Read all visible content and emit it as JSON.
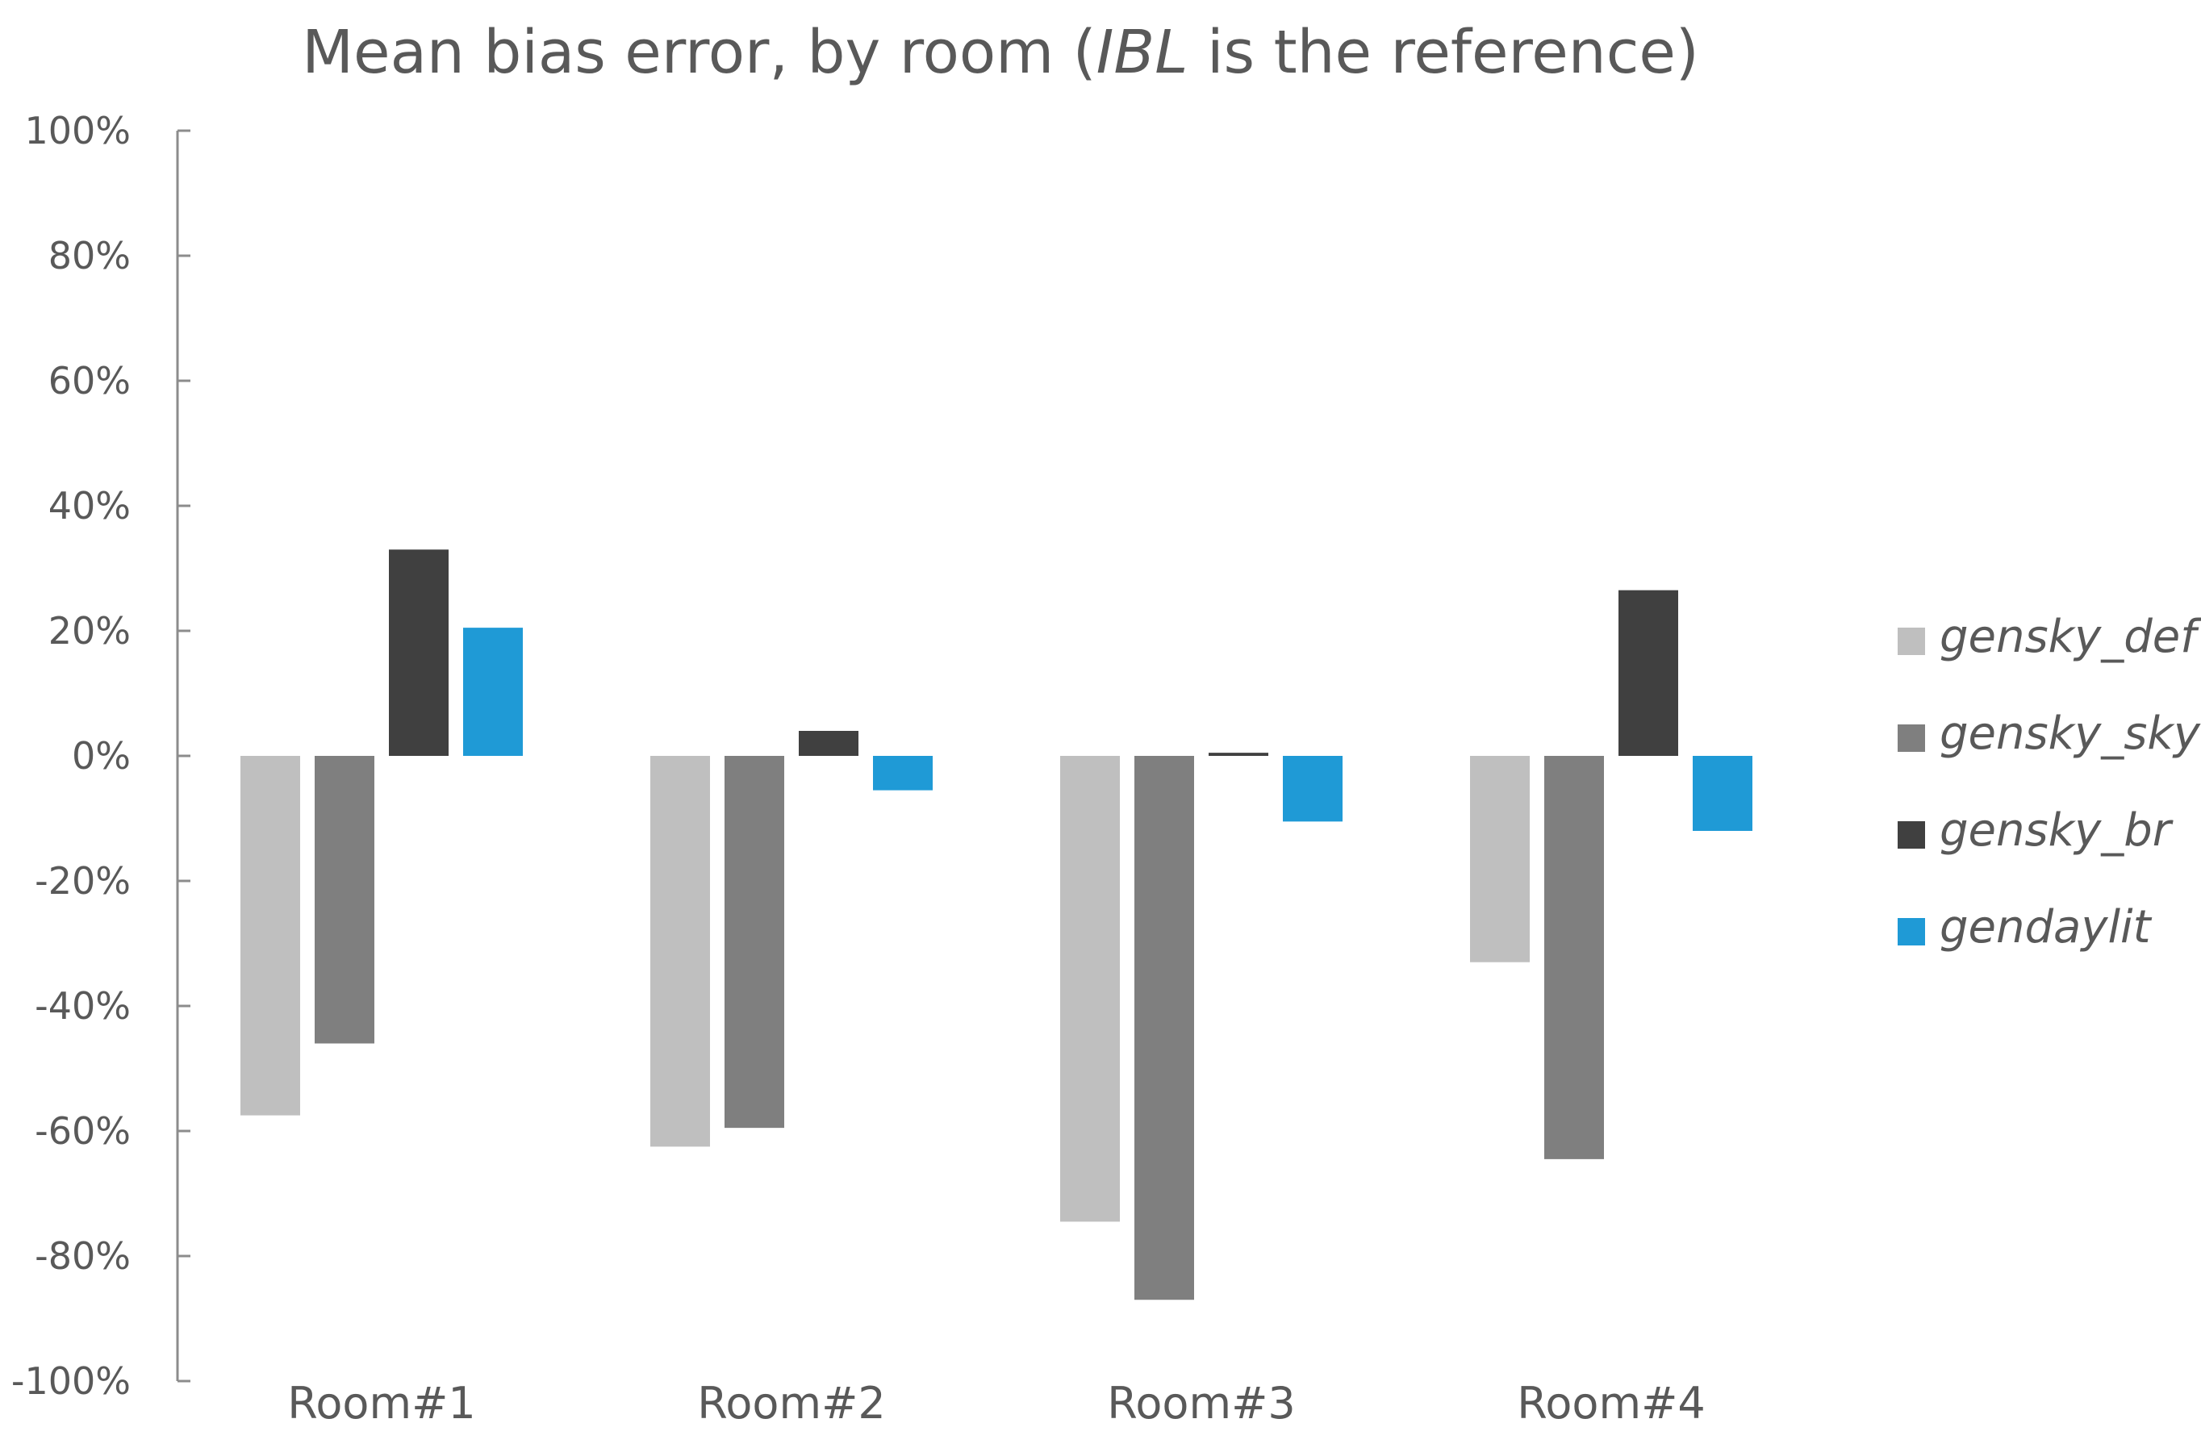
{
  "chart_data": {
    "type": "bar",
    "title": {
      "prefix": "Mean bias error, by room (",
      "emphasis": "IBL",
      "suffix": " is the reference)"
    },
    "xlabel": "",
    "ylabel": "",
    "categories": [
      "Room#1",
      "Room#2",
      "Room#3",
      "Room#4"
    ],
    "ylim": [
      -100,
      100
    ],
    "yticks": [
      100,
      80,
      60,
      40,
      20,
      0,
      -20,
      -40,
      -60,
      -80,
      -100
    ],
    "ytick_labels": [
      "100%",
      "80%",
      "60%",
      "40%",
      "20%",
      "0%",
      "-20%",
      "-40%",
      "-60%",
      "-80%",
      "-100%"
    ],
    "grid": false,
    "legend_position": "right",
    "series": [
      {
        "name": "gensky_def",
        "color": "#bfbfbf",
        "values": [
          -57.5,
          -62.5,
          -74.5,
          -33
        ]
      },
      {
        "name": "gensky_sky",
        "color": "#7f7f7f",
        "values": [
          -46,
          -59.5,
          -87,
          -64.5
        ]
      },
      {
        "name": "gensky_br",
        "color": "#404040",
        "values": [
          33,
          4,
          0.5,
          26.5
        ]
      },
      {
        "name": "gendaylit",
        "color": "#1f9ad6",
        "values": [
          20.5,
          -5.5,
          -10.5,
          -12
        ]
      }
    ]
  }
}
